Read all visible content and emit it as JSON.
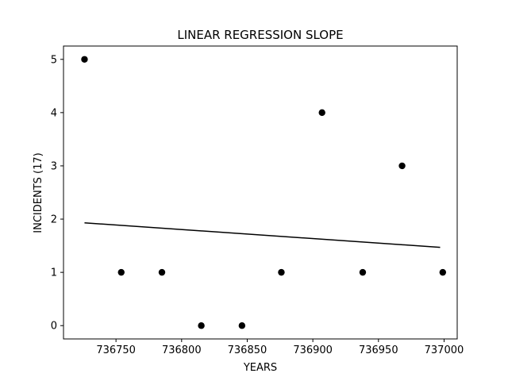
{
  "chart_data": {
    "type": "scatter",
    "title": "LINEAR REGRESSION SLOPE",
    "xlabel": "YEARS",
    "ylabel": "INCIDENTS (17)",
    "xlim": [
      736710,
      737010
    ],
    "ylim": [
      -0.25,
      5.25
    ],
    "x_ticks": [
      736750,
      736800,
      736850,
      736900,
      736950,
      737000
    ],
    "x_tick_labels": [
      "736750",
      "736800",
      "736850",
      "736900",
      "736950",
      "737000"
    ],
    "y_ticks": [
      0,
      1,
      2,
      3,
      4,
      5
    ],
    "y_tick_labels": [
      "0",
      "1",
      "2",
      "3",
      "4",
      "5"
    ],
    "grid": false,
    "series": [
      {
        "type": "scatter",
        "color": "#000000",
        "x": [
          736726,
          736754,
          736785,
          736815,
          736846,
          736876,
          736907,
          736938,
          736968,
          736999
        ],
        "y": [
          5,
          1,
          1,
          0,
          0,
          1,
          4,
          1,
          3,
          1
        ]
      },
      {
        "type": "line",
        "color": "#000000",
        "x": [
          736726,
          736997
        ],
        "y": [
          1.93,
          1.47
        ]
      }
    ]
  }
}
